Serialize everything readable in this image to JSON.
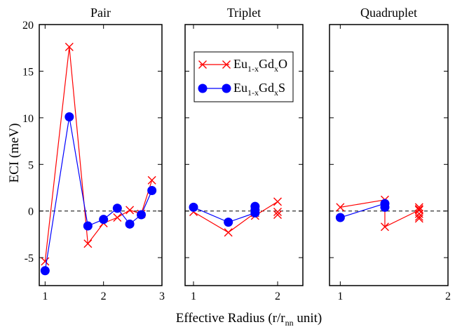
{
  "chart_data": {
    "type": "line",
    "ylabel": "ECI (meV)",
    "xlabel_main": "Effective Radius (r/r",
    "xlabel_sub": "nn",
    "xlabel_tail": " unit)",
    "ylim": [
      -8,
      20
    ],
    "yticks": [
      -5,
      0,
      5,
      10,
      15,
      20
    ],
    "reference_line": 0,
    "colors": {
      "EuGdO": "#ff0000",
      "EuGdS": "#0000ff"
    },
    "legend": {
      "placement": "inside-triplet-panel-top",
      "entries": [
        {
          "key": "EuGdO",
          "marker": "x",
          "base": "Eu",
          "sub1": "1-x",
          "mid": "Gd",
          "sub2": "x",
          "end": "O"
        },
        {
          "key": "EuGdS",
          "marker": "circle",
          "base": "Eu",
          "sub1": "1-x",
          "mid": "Gd",
          "sub2": "x",
          "end": "S"
        }
      ]
    },
    "panels": [
      {
        "title": "Pair",
        "xlim": [
          0.9,
          3.0
        ],
        "xticks": [
          1,
          2,
          3
        ],
        "series": [
          {
            "key": "EuGdO",
            "connected": true,
            "points": [
              [
                1.0,
                -5.4
              ],
              [
                1.414,
                17.6
              ],
              [
                1.732,
                -3.5
              ],
              [
                2.0,
                -1.3
              ],
              [
                2.236,
                -0.7
              ],
              [
                2.449,
                0.1
              ],
              [
                2.646,
                -0.3
              ],
              [
                2.828,
                3.3
              ]
            ]
          },
          {
            "key": "EuGdS",
            "connected": true,
            "points": [
              [
                1.0,
                -6.4
              ],
              [
                1.414,
                10.1
              ],
              [
                1.732,
                -1.6
              ],
              [
                2.0,
                -0.9
              ],
              [
                2.236,
                0.3
              ],
              [
                2.449,
                -1.4
              ],
              [
                2.646,
                -0.4
              ],
              [
                2.828,
                2.2
              ]
            ]
          }
        ]
      },
      {
        "title": "Triplet",
        "xlim": [
          0.9,
          2.3
        ],
        "xticks": [
          1,
          2
        ],
        "series": [
          {
            "key": "EuGdO",
            "connected": true,
            "points": [
              [
                1.0,
                -0.1
              ],
              [
                1.414,
                -2.3
              ],
              [
                1.732,
                -0.2
              ],
              [
                1.732,
                -0.5
              ],
              [
                2.0,
                1.0
              ]
            ]
          },
          {
            "key": "EuGdO",
            "connected": false,
            "points": [
              [
                2.0,
                -0.1
              ],
              [
                2.0,
                -0.4
              ]
            ]
          },
          {
            "key": "EuGdS",
            "connected": true,
            "points": [
              [
                1.0,
                0.4
              ],
              [
                1.414,
                -1.2
              ],
              [
                1.732,
                -0.2
              ]
            ]
          },
          {
            "key": "EuGdS",
            "connected": false,
            "points": [
              [
                1.732,
                0.1
              ],
              [
                1.732,
                0.5
              ]
            ]
          }
        ]
      },
      {
        "title": "Quadruplet",
        "xlim": [
          0.9,
          2.0
        ],
        "xticks": [
          1,
          2
        ],
        "series": [
          {
            "key": "EuGdO",
            "connected": true,
            "points": [
              [
                1.0,
                0.4
              ],
              [
                1.414,
                1.2
              ],
              [
                1.414,
                -1.7
              ],
              [
                1.732,
                0.1
              ]
            ]
          },
          {
            "key": "EuGdO",
            "connected": false,
            "points": [
              [
                1.732,
                0.4
              ],
              [
                1.732,
                0.2
              ],
              [
                1.732,
                -0.3
              ],
              [
                1.732,
                -0.6
              ],
              [
                1.732,
                -0.8
              ]
            ]
          },
          {
            "key": "EuGdS",
            "connected": true,
            "points": [
              [
                1.0,
                -0.7
              ],
              [
                1.414,
                0.8
              ]
            ]
          },
          {
            "key": "EuGdS",
            "connected": false,
            "points": [
              [
                1.414,
                0.4
              ]
            ]
          }
        ]
      }
    ]
  }
}
